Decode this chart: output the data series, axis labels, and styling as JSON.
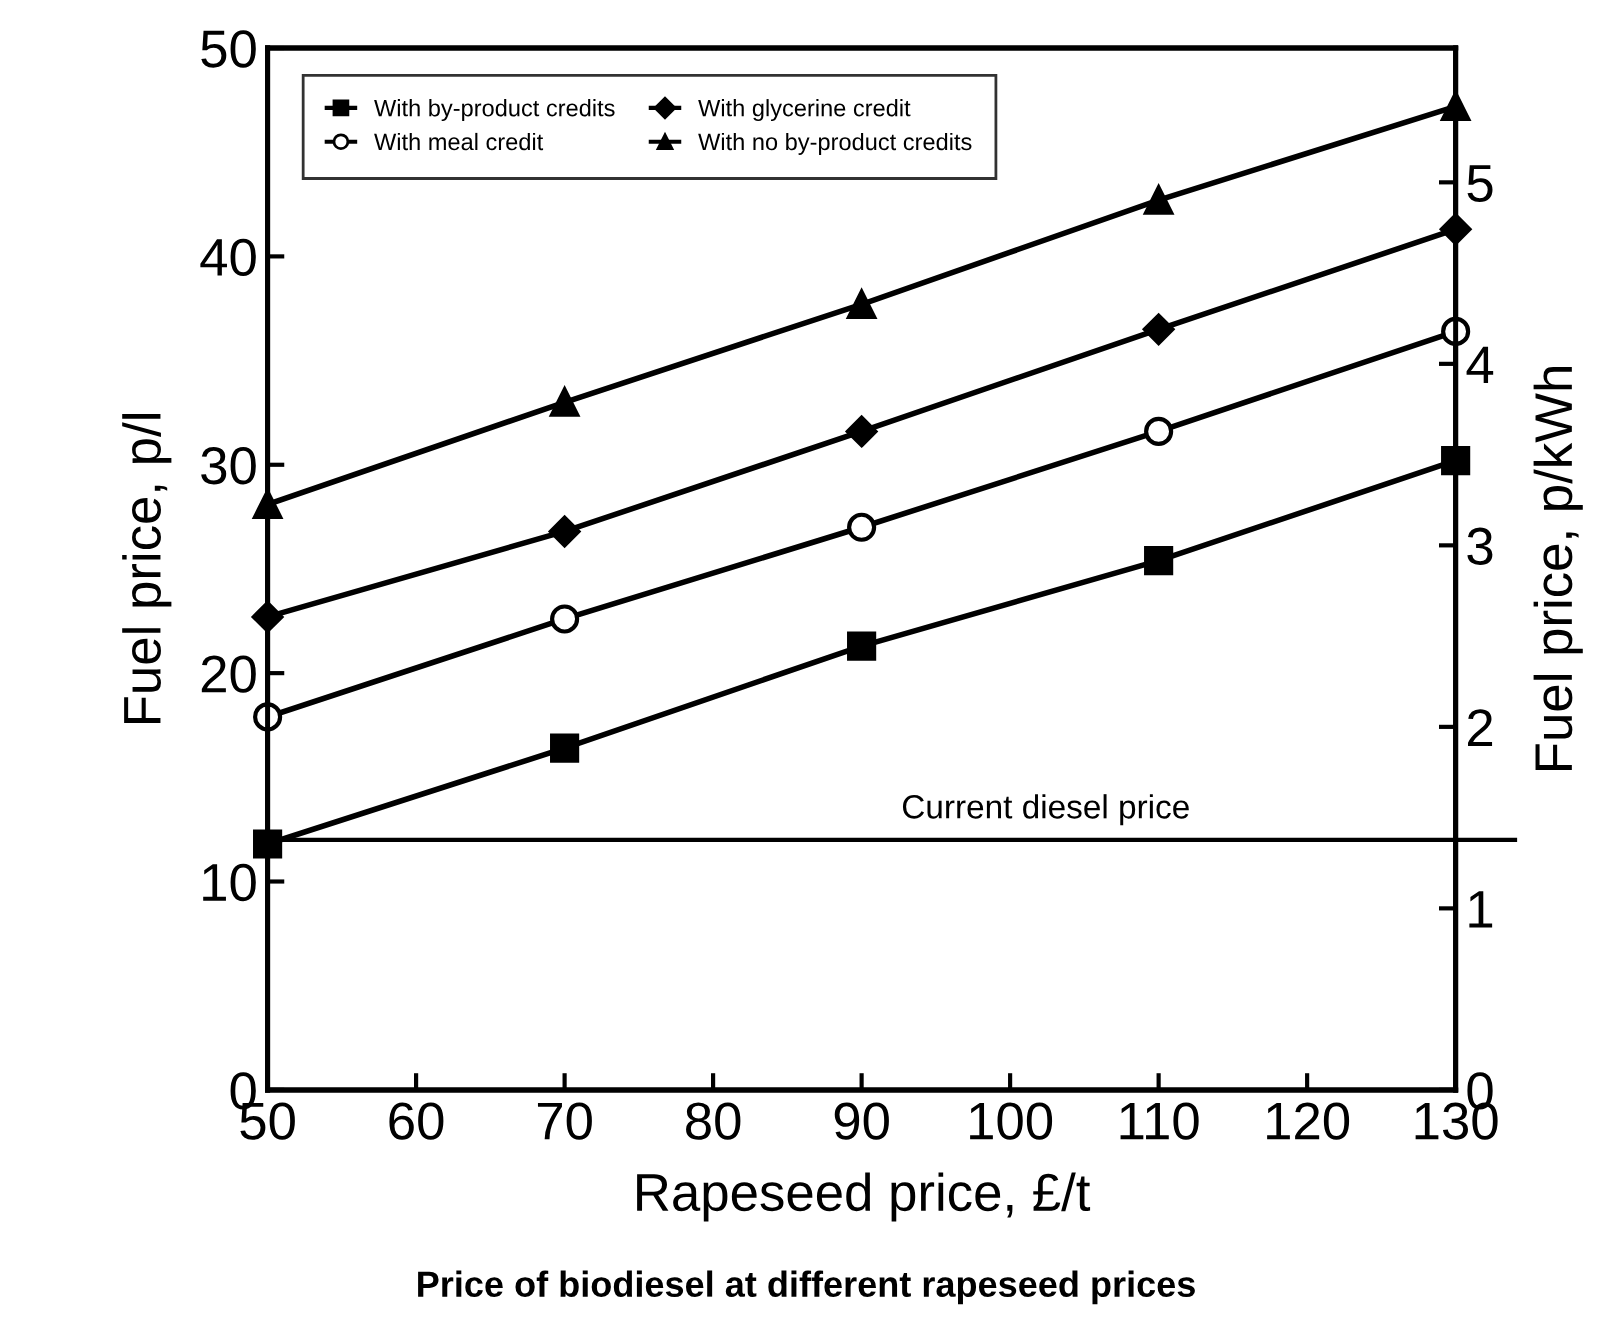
{
  "chart_data": {
    "type": "line",
    "title": "Price of biodiesel at different rapeseed prices",
    "xlabel": "Rapeseed price, £/t",
    "ylabel": "Fuel price, p/l",
    "y2label": "Fuel price, p/kWh",
    "x": [
      50,
      70,
      90,
      110,
      130
    ],
    "series": [
      {
        "name": "With by-product credits",
        "color": "#000000",
        "marker": "square",
        "values": [
          11.8,
          16.4,
          21.3,
          25.4,
          30.2
        ]
      },
      {
        "name": "With meal credit",
        "color": "#000000",
        "marker": "open circle",
        "values": [
          17.9,
          22.6,
          27.0,
          31.6,
          36.4
        ]
      },
      {
        "name": "With glycerine credit",
        "color": "#000000",
        "marker": "diamond",
        "values": [
          22.7,
          26.8,
          31.6,
          36.5,
          41.3
        ]
      },
      {
        "name": "With no by-product credits",
        "color": "#000000",
        "marker": "triangle",
        "values": [
          28.1,
          33.0,
          37.7,
          42.7,
          47.2
        ]
      }
    ],
    "ref_lines": [
      {
        "axis": "y",
        "value": 12.0,
        "label": "Current diesel price",
        "color": "#000000",
        "line_style": "solid"
      }
    ],
    "xlim": [
      50,
      130
    ],
    "xticks": [
      50,
      60,
      70,
      80,
      90,
      100,
      110,
      120,
      130
    ],
    "ylim": [
      0,
      50
    ],
    "yticks": [
      0,
      10,
      20,
      30,
      40,
      50
    ],
    "y2lim": [
      0,
      5.74
    ],
    "y2ticks": [
      0,
      1,
      2,
      3,
      4,
      5
    ],
    "grid": false,
    "legend": "top left",
    "line_style": "solid"
  }
}
